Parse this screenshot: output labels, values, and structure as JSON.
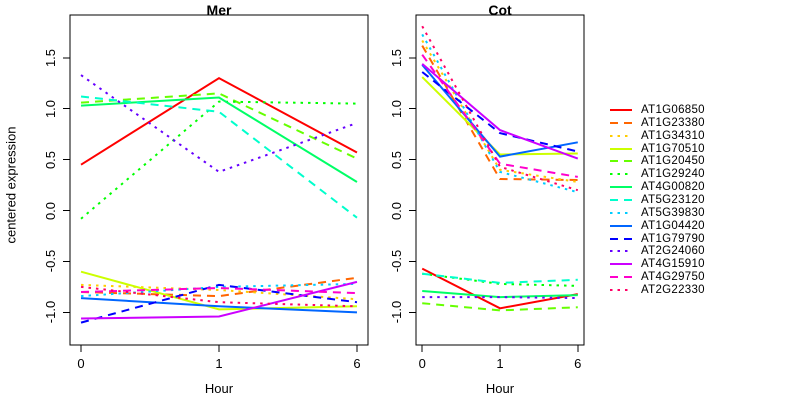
{
  "figure": {
    "ylabel": "centered expression",
    "xlabel": "Hour",
    "background": "#FFFFFF",
    "axis_color": "#000000"
  },
  "genes": [
    {
      "id": "AT1G06850",
      "color": "#FF0000",
      "linetype": "solid"
    },
    {
      "id": "AT1G23380",
      "color": "#FF6600",
      "linetype": "dashed"
    },
    {
      "id": "AT1G34310",
      "color": "#FFCC00",
      "linetype": "dotted"
    },
    {
      "id": "AT1G70510",
      "color": "#CCFF00",
      "linetype": "solid"
    },
    {
      "id": "AT1G20450",
      "color": "#66FF00",
      "linetype": "dashed"
    },
    {
      "id": "AT1G29240",
      "color": "#00FF00",
      "linetype": "dotted"
    },
    {
      "id": "AT4G00820",
      "color": "#00FF66",
      "linetype": "solid"
    },
    {
      "id": "AT5G23120",
      "color": "#00FFCC",
      "linetype": "dashed"
    },
    {
      "id": "AT5G39830",
      "color": "#00CCFF",
      "linetype": "dotted"
    },
    {
      "id": "AT1G04420",
      "color": "#0066FF",
      "linetype": "solid"
    },
    {
      "id": "AT1G79790",
      "color": "#0000FF",
      "linetype": "dashed"
    },
    {
      "id": "AT2G24060",
      "color": "#6600FF",
      "linetype": "dotted"
    },
    {
      "id": "AT4G15910",
      "color": "#CC00FF",
      "linetype": "solid"
    },
    {
      "id": "AT4G29750",
      "color": "#FF00CC",
      "linetype": "dashed"
    },
    {
      "id": "AT2G22330",
      "color": "#FF0066",
      "linetype": "dotted"
    }
  ],
  "legend": {
    "position": "right",
    "labels": [
      "AT1G06850",
      "AT1G23380",
      "AT1G34310",
      "AT1G70510",
      "AT1G20450",
      "AT1G29240",
      "AT4G00820",
      "AT5G23120",
      "AT5G39830",
      "AT1G04420",
      "AT1G79790",
      "AT2G24060",
      "AT4G15910",
      "AT4G29750",
      "AT2G22330"
    ]
  },
  "chart_data": [
    {
      "type": "line",
      "title": "Mer",
      "xlabel": "Hour",
      "ylabel": "centered expression",
      "x": [
        0,
        1,
        6
      ],
      "x_tick_labels": [
        "0",
        "1",
        "6"
      ],
      "x_spacing": "categorical",
      "ylim": [
        -1.32,
        1.92
      ],
      "y_ticks": [
        1.5,
        1.0,
        0.5,
        0.0,
        -0.5,
        -1.0
      ],
      "y_tick_labels": [
        "1.5",
        "1.0",
        "0.5",
        "0.0",
        "-0.5",
        "-1.0"
      ],
      "grid": false,
      "series": [
        {
          "name": "AT1G06850",
          "values": [
            0.45,
            1.3,
            0.57
          ]
        },
        {
          "name": "AT1G23380",
          "values": [
            -0.8,
            -0.84,
            -0.66
          ]
        },
        {
          "name": "AT1G34310",
          "values": [
            -0.73,
            -0.78,
            -0.87
          ]
        },
        {
          "name": "AT1G70510",
          "values": [
            -0.6,
            -0.97,
            -0.94
          ]
        },
        {
          "name": "AT1G20450",
          "values": [
            1.06,
            1.15,
            0.51
          ]
        },
        {
          "name": "AT1G29240",
          "values": [
            -0.08,
            1.07,
            1.05
          ]
        },
        {
          "name": "AT4G00820",
          "values": [
            1.03,
            1.11,
            0.28
          ]
        },
        {
          "name": "AT5G23120",
          "values": [
            1.12,
            0.97,
            -0.07
          ]
        },
        {
          "name": "AT5G39830",
          "values": [
            -0.84,
            -0.75,
            -0.72
          ]
        },
        {
          "name": "AT1G04420",
          "values": [
            -0.86,
            -0.94,
            -1.0
          ]
        },
        {
          "name": "AT1G79790",
          "values": [
            -1.1,
            -0.73,
            -0.9
          ]
        },
        {
          "name": "AT2G24060",
          "values": [
            1.33,
            0.38,
            0.86
          ]
        },
        {
          "name": "AT4G15910",
          "values": [
            -1.06,
            -1.04,
            -0.7
          ]
        },
        {
          "name": "AT4G29750",
          "values": [
            -0.8,
            -0.76,
            -0.81
          ]
        },
        {
          "name": "AT2G22330",
          "values": [
            -0.75,
            -0.9,
            -0.94
          ]
        }
      ]
    },
    {
      "type": "line",
      "title": "Cot",
      "xlabel": "Hour",
      "ylabel": "centered expression",
      "x": [
        0,
        1,
        6
      ],
      "x_tick_labels": [
        "0",
        "1",
        "6"
      ],
      "x_spacing": "categorical",
      "ylim": [
        -1.32,
        1.92
      ],
      "y_ticks": [
        1.5,
        1.0,
        0.5,
        0.0,
        -0.5,
        -1.0
      ],
      "y_tick_labels": [
        "1.5",
        "1.0",
        "0.5",
        "0.0",
        "-0.5",
        "-1.0"
      ],
      "grid": false,
      "series": [
        {
          "name": "AT1G06850",
          "values": [
            -0.57,
            -0.96,
            -0.82
          ]
        },
        {
          "name": "AT1G23380",
          "values": [
            1.62,
            0.31,
            0.3
          ]
        },
        {
          "name": "AT1G34310",
          "values": [
            1.67,
            0.4,
            0.28
          ]
        },
        {
          "name": "AT1G70510",
          "values": [
            1.31,
            0.55,
            0.56
          ]
        },
        {
          "name": "AT1G20450",
          "values": [
            -0.91,
            -0.98,
            -0.95
          ]
        },
        {
          "name": "AT1G29240",
          "values": [
            -0.62,
            -0.72,
            -0.74
          ]
        },
        {
          "name": "AT4G00820",
          "values": [
            -0.79,
            -0.85,
            -0.83
          ]
        },
        {
          "name": "AT5G23120",
          "values": [
            -0.62,
            -0.71,
            -0.68
          ]
        },
        {
          "name": "AT5G39830",
          "values": [
            1.73,
            0.38,
            0.18
          ]
        },
        {
          "name": "AT1G04420",
          "values": [
            1.43,
            0.53,
            0.67
          ]
        },
        {
          "name": "AT1G79790",
          "values": [
            1.36,
            0.76,
            0.58
          ]
        },
        {
          "name": "AT2G24060",
          "values": [
            -0.85,
            -0.85,
            -0.86
          ]
        },
        {
          "name": "AT4G15910",
          "values": [
            1.44,
            0.79,
            0.51
          ]
        },
        {
          "name": "AT4G29750",
          "values": [
            1.53,
            0.46,
            0.33
          ]
        },
        {
          "name": "AT2G22330",
          "values": [
            1.81,
            0.43,
            0.2
          ]
        }
      ]
    }
  ]
}
